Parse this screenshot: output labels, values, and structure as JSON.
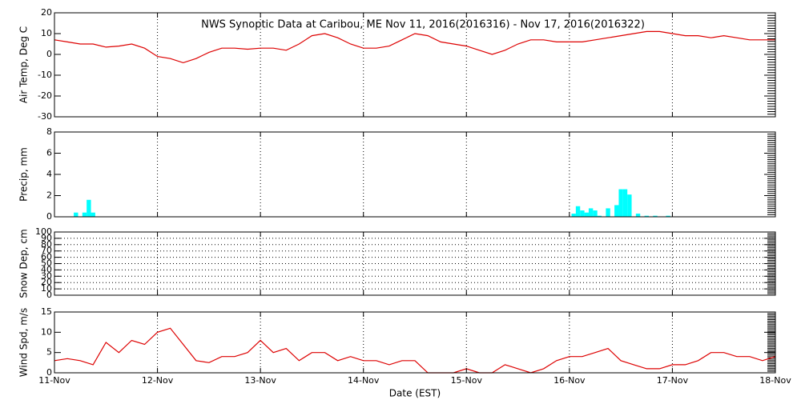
{
  "chart_data": [
    {
      "type": "line",
      "title": "NWS Synoptic Data at Caribou, ME   Nov 11, 2016(2016316) - Nov 17, 2016(2016322)",
      "ylabel": "Air Temp, Deg C",
      "color": "#dd0000",
      "x": [
        0,
        3,
        6,
        9,
        12,
        15,
        18,
        21,
        24,
        27,
        30,
        33,
        36,
        39,
        42,
        45,
        48,
        51,
        54,
        57,
        60,
        63,
        66,
        69,
        72,
        75,
        78,
        81,
        84,
        87,
        90,
        93,
        96,
        99,
        102,
        105,
        108,
        111,
        114,
        117,
        120,
        123,
        126,
        129,
        132,
        135,
        138,
        141,
        144,
        147,
        150,
        153,
        156,
        159,
        162,
        165,
        168
      ],
      "values": [
        7,
        6,
        5,
        5,
        3.5,
        4,
        5,
        3,
        -1,
        -2,
        -4,
        -2,
        1,
        3,
        3,
        2.5,
        3,
        3,
        2,
        5,
        9,
        10,
        8,
        5,
        3,
        3,
        4,
        7,
        10,
        9,
        6,
        5,
        4,
        2,
        0,
        2,
        5,
        7,
        7,
        6,
        6,
        6,
        7,
        8,
        9,
        10,
        11,
        11,
        10,
        9,
        9,
        8,
        9,
        8,
        7,
        7,
        7
      ],
      "ylim": [
        -30,
        20
      ],
      "yticks": [
        -30,
        -20,
        -10,
        0,
        10,
        20
      ]
    },
    {
      "type": "bar",
      "ylabel": "Precip, mm",
      "color": "#00ffff",
      "x": [
        5,
        7,
        8,
        9,
        121,
        122,
        123,
        124,
        125,
        126,
        127,
        129,
        131,
        132,
        133,
        134,
        136,
        138,
        140,
        143
      ],
      "values": [
        0.4,
        0.4,
        1.6,
        0.4,
        0.3,
        1.0,
        0.6,
        0.4,
        0.8,
        0.6,
        0.1,
        0.8,
        1.1,
        2.6,
        2.6,
        2.1,
        0.3,
        0.1,
        0.1,
        0.1
      ],
      "ylim": [
        0,
        8
      ],
      "yticks": [
        0,
        2,
        4,
        6,
        8
      ]
    },
    {
      "type": "line",
      "ylabel": "Snow Dep, cm",
      "ylim": [
        0,
        100
      ],
      "yticks": [
        0,
        10,
        20,
        30,
        40,
        50,
        60,
        70,
        80,
        90,
        100
      ],
      "ygrid": true
    },
    {
      "type": "line",
      "ylabel": "Wind Spd, m/s",
      "color": "#dd0000",
      "xlabel": "Date (EST)",
      "x": [
        0,
        3,
        6,
        9,
        12,
        15,
        18,
        21,
        24,
        27,
        30,
        33,
        36,
        39,
        42,
        45,
        48,
        51,
        54,
        57,
        60,
        63,
        66,
        69,
        72,
        75,
        78,
        81,
        84,
        87,
        90,
        93,
        96,
        99,
        102,
        105,
        108,
        111,
        114,
        117,
        120,
        123,
        126,
        129,
        132,
        135,
        138,
        141,
        144,
        147,
        150,
        153,
        156,
        159,
        162,
        165,
        168
      ],
      "values": [
        3,
        3.5,
        3,
        2,
        7.5,
        5,
        8,
        7,
        10,
        11,
        7,
        3,
        2.5,
        4,
        4,
        5,
        8,
        5,
        6,
        3,
        5,
        5,
        3,
        4,
        3,
        3,
        2,
        3,
        3,
        0,
        0,
        0,
        1,
        0,
        0,
        2,
        1,
        0,
        1,
        3,
        4,
        4,
        5,
        6,
        3,
        2,
        1,
        1,
        2,
        2,
        3,
        5,
        5,
        4,
        4,
        3,
        4
      ],
      "ylim": [
        0,
        15
      ],
      "yticks": [
        0,
        5,
        10,
        15
      ],
      "xlim": [
        0,
        168
      ],
      "xticks": [
        {
          "value": 0,
          "label": "11-Nov"
        },
        {
          "value": 24,
          "label": "12-Nov"
        },
        {
          "value": 48,
          "label": "13-Nov"
        },
        {
          "value": 72,
          "label": "14-Nov"
        },
        {
          "value": 96,
          "label": "15-Nov"
        },
        {
          "value": 120,
          "label": "16-Nov"
        },
        {
          "value": 144,
          "label": "17-Nov"
        },
        {
          "value": 168,
          "label": "18-Nov"
        }
      ]
    }
  ]
}
